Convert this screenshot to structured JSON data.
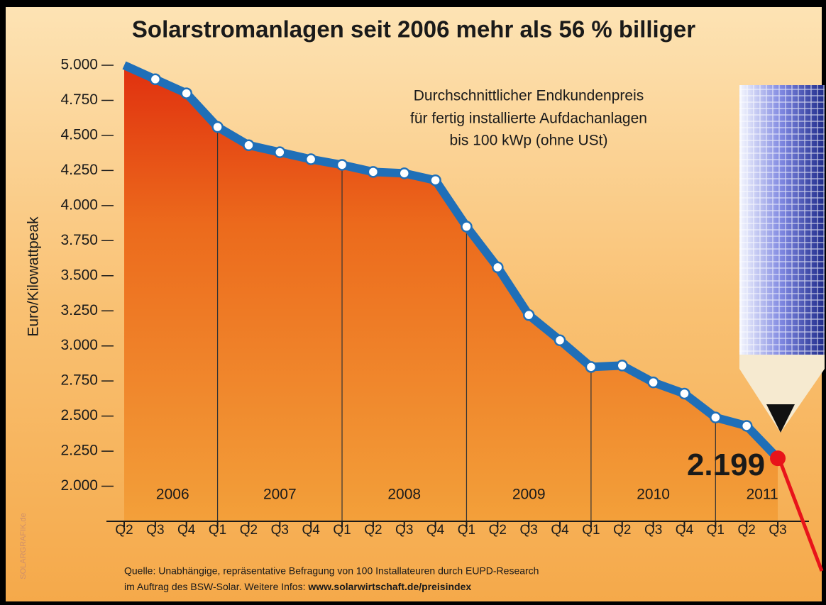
{
  "chart_data": {
    "type": "area-line",
    "title": "Solarstromanlagen seit 2006 mehr als 56 % billiger",
    "subtitle": [
      "Durchschnittlicher Endkundenpreis",
      "für fertig installierte Aufdachanlagen",
      "bis 100 kWp (ohne USt)"
    ],
    "y_label": "Euro/Kilowattpeak",
    "categories": [
      "Q2",
      "Q3",
      "Q4",
      "Q1",
      "Q2",
      "Q3",
      "Q4",
      "Q1",
      "Q2",
      "Q3",
      "Q4",
      "Q1",
      "Q2",
      "Q3",
      "Q4",
      "Q1",
      "Q2",
      "Q3",
      "Q4",
      "Q1",
      "Q2",
      "Q3"
    ],
    "years": [
      "2006",
      "2007",
      "2008",
      "2009",
      "2010",
      "2011"
    ],
    "values": [
      5000,
      4900,
      4800,
      4560,
      4430,
      4380,
      4330,
      4290,
      4240,
      4230,
      4180,
      3850,
      3560,
      3220,
      3040,
      2850,
      2860,
      2740,
      2660,
      2490,
      2430,
      2199
    ],
    "value_labels": [
      null,
      null,
      null,
      null,
      null,
      null,
      null,
      null,
      null,
      null,
      null,
      null,
      null,
      null,
      null,
      null,
      null,
      null,
      null,
      null,
      null,
      "2.199"
    ],
    "color": "#1f6fb8",
    "ylim": [
      1750,
      5000
    ],
    "yticks": [
      {
        "value": 2000,
        "label": "2.000"
      },
      {
        "value": 2250,
        "label": "2.250"
      },
      {
        "value": 2500,
        "label": "2.500"
      },
      {
        "value": 2750,
        "label": "2.750"
      },
      {
        "value": 3000,
        "label": "3.000"
      },
      {
        "value": 3250,
        "label": "3.250"
      },
      {
        "value": 3500,
        "label": "3.500"
      },
      {
        "value": 3750,
        "label": "3.750"
      },
      {
        "value": 4000,
        "label": "4.000"
      },
      {
        "value": 4250,
        "label": "4.250"
      },
      {
        "value": 4500,
        "label": "4.500"
      },
      {
        "value": 4750,
        "label": "4.750"
      },
      {
        "value": 5000,
        "label": "5.000"
      }
    ],
    "source": [
      "Quelle: Unabhängige, repräsentative Befragung von 100 Installateuren durch EUPD-Research",
      "im Auftrag des BSW-Solar. Weitere Infos: ",
      "www.solarwirtschaft.de/preisindex"
    ],
    "credit": "SOLARGRAFIK.de"
  }
}
